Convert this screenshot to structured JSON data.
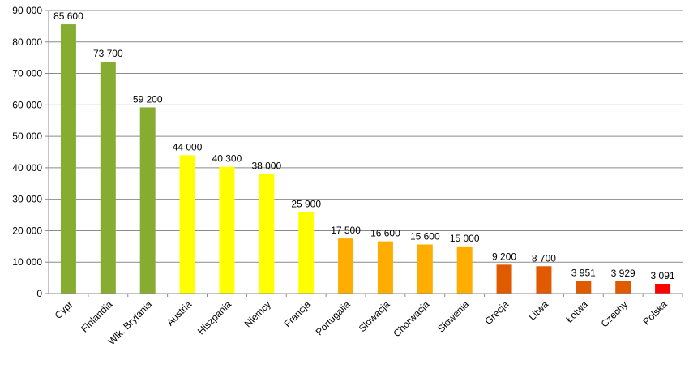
{
  "chart_data": {
    "type": "bar",
    "title": "",
    "xlabel": "",
    "ylabel": "",
    "ylim": [
      0,
      90000
    ],
    "yticks": [
      0,
      10000,
      20000,
      30000,
      40000,
      50000,
      60000,
      70000,
      80000,
      90000
    ],
    "ytick_labels": [
      "0",
      "10 000",
      "20 000",
      "30 000",
      "40 000",
      "50 000",
      "60 000",
      "70 000",
      "80 000",
      "90 000"
    ],
    "grid": "horizontal",
    "legend": "none",
    "categories": [
      "Cypr",
      "Finlandia",
      "Wlk. Brytania",
      "Austria",
      "Hiszpania",
      "Niemcy",
      "Francja",
      "Portugalia",
      "Słowacja",
      "Chorwacja",
      "Słowenia",
      "Grecja",
      "Litwa",
      "Łotwa",
      "Czechy",
      "Polska"
    ],
    "values": [
      85600,
      73700,
      59200,
      44000,
      40300,
      38000,
      25900,
      17500,
      16600,
      15600,
      15000,
      9200,
      8700,
      3951,
      3929,
      3091
    ],
    "value_labels": [
      "85 600",
      "73 700",
      "59 200",
      "44 000",
      "40 300",
      "38 000",
      "25 900",
      "17 500",
      "16 600",
      "15 600",
      "15 000",
      "9 200",
      "8 700",
      "3 951",
      "3 929",
      "3 091"
    ],
    "colors": [
      "#86ad31",
      "#86ad31",
      "#86ad31",
      "#ffff00",
      "#ffff00",
      "#ffff00",
      "#ffff00",
      "#ffad00",
      "#ffad00",
      "#ffad00",
      "#ffad00",
      "#e05a00",
      "#e05a00",
      "#e05a00",
      "#e05a00",
      "#ff0000"
    ]
  }
}
